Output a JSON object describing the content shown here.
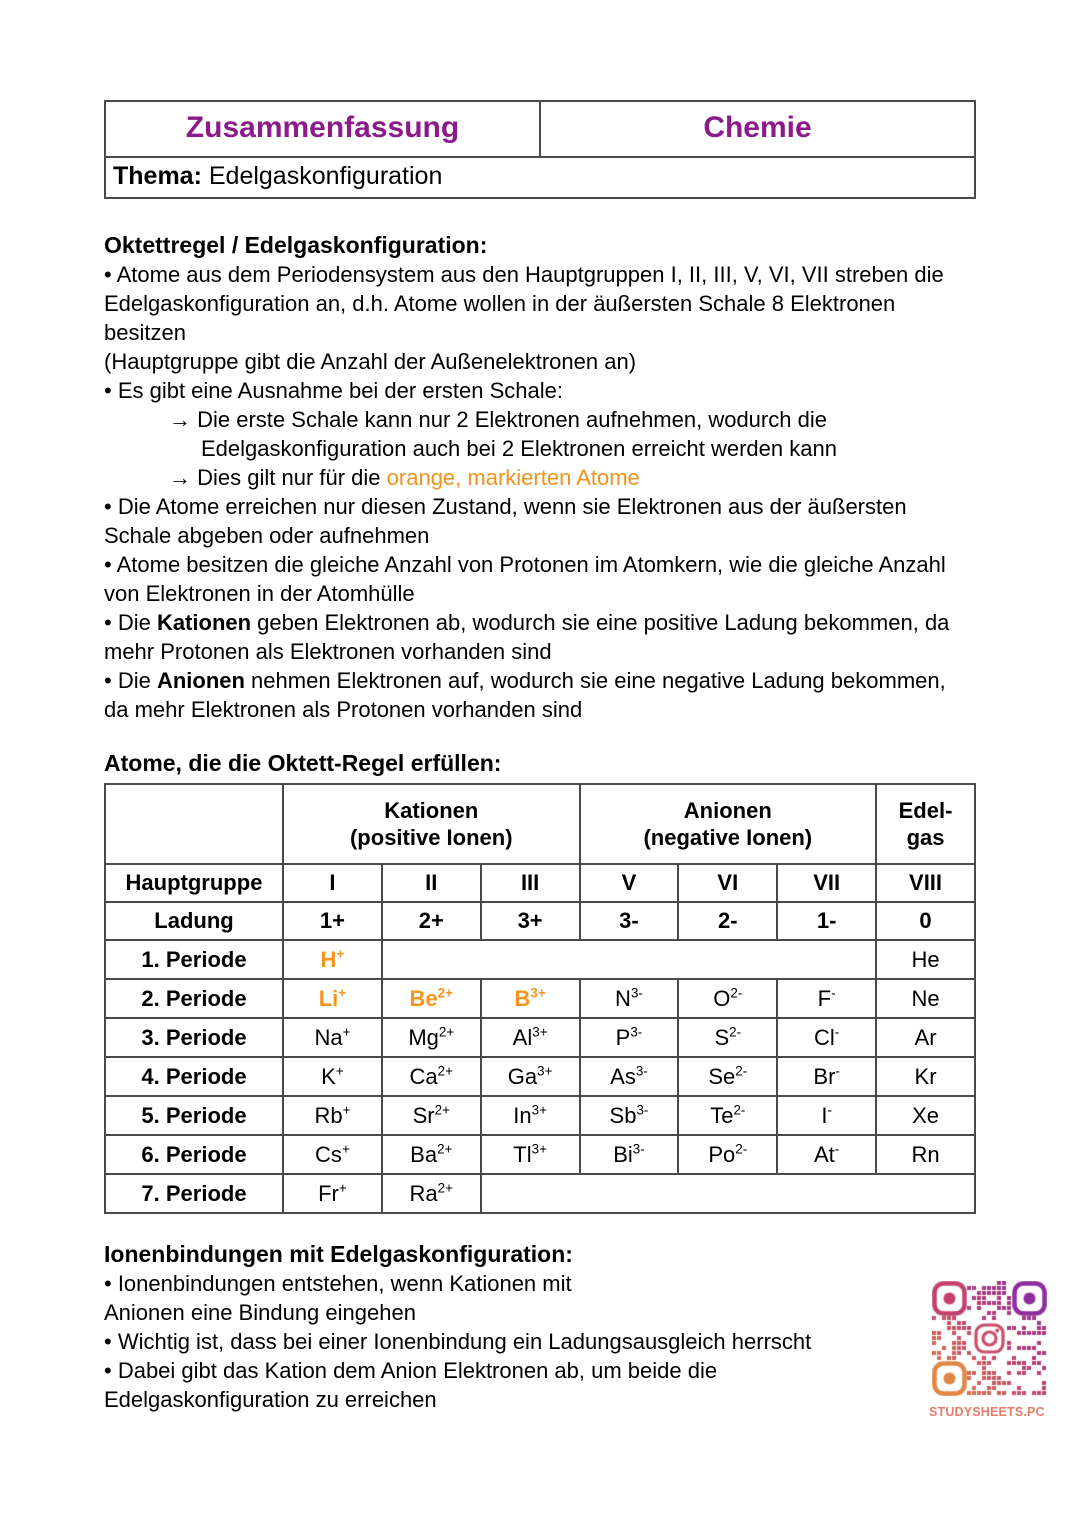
{
  "colors": {
    "purple": "#8B1A8B",
    "orange": "#F0921E",
    "ion_orange": "#F7941E",
    "border": "#4a4a4a",
    "qr_orange": "#E08748",
    "qr_crimson": "#C2416F",
    "qr_purple": "#8E2D9B",
    "qr_icon": "#C94F68",
    "qr_label_color": "#E87B6B"
  },
  "header": {
    "left": "Zusammenfassung",
    "right": "Chemie",
    "thema_label": "Thema:",
    "thema_value": "Edelgaskonfiguration"
  },
  "intro": {
    "heading": "Oktettregel / Edelgaskonfiguration:",
    "paragraphs": [
      {
        "seg": [
          {
            "t": "• Atome aus dem Periodensystem aus den Hauptgruppen I, II, III, V, VI, VII streben die Edelgaskonfiguration an, d.h. Atome wollen in der äußersten Schale 8 Elektronen besitzen"
          }
        ]
      },
      {
        "seg": [
          {
            "t": "(Hauptgruppe gibt die Anzahl der Außenelektronen an)"
          }
        ]
      },
      {
        "seg": [
          {
            "t": "• Es gibt eine Ausnahme bei der ersten Schale:"
          }
        ]
      },
      {
        "indent": true,
        "seg": [
          {
            "t": "→ ",
            "b": true
          },
          {
            "t": "Die erste Schale kann nur 2 Elektronen aufnehmen, wodurch die Edelgaskonfiguration auch bei 2 Elektronen erreicht werden kann"
          }
        ]
      },
      {
        "indent": true,
        "seg": [
          {
            "t": "→ ",
            "b": true
          },
          {
            "t": "Dies gilt nur für die "
          },
          {
            "t": "orange, markierten Atome",
            "c": "orange"
          }
        ]
      },
      {
        "seg": [
          {
            "t": "• Die Atome erreichen nur diesen Zustand, wenn sie Elektronen aus der äußersten Schale abgeben oder aufnehmen"
          }
        ]
      },
      {
        "seg": [
          {
            "t": "• Atome besitzen die gleiche Anzahl von Protonen im Atomkern, wie die gleiche Anzahl von Elektronen in der Atomhülle"
          }
        ]
      },
      {
        "seg": [
          {
            "t": "• Die "
          },
          {
            "t": "Kationen",
            "b": true
          },
          {
            "t": " geben Elektronen ab, wodurch sie eine positive Ladung bekommen, da mehr Protonen als Elektronen vorhanden sind"
          }
        ]
      },
      {
        "seg": [
          {
            "t": "• Die "
          },
          {
            "t": "Anionen",
            "b": true
          },
          {
            "t": " nehmen Elektronen auf, wodurch sie eine negative Ladung bekommen, da mehr Elektronen als Protonen vorhanden sind"
          }
        ]
      }
    ]
  },
  "table": {
    "title": "Atome, die die Oktett-Regel erfüllen:",
    "group_headers": [
      {
        "label": "",
        "span": 1
      },
      {
        "label": "Kationen",
        "sub": "(positive Ionen)",
        "span": 3
      },
      {
        "label": "Anionen",
        "sub": "(negative Ionen)",
        "span": 3
      },
      {
        "label": "Edel-",
        "sub": "gas",
        "span": 1
      }
    ],
    "simple_rows": [
      {
        "label": "Hauptgruppe",
        "cells": [
          "I",
          "II",
          "III",
          "V",
          "VI",
          "VII",
          "VIII"
        ]
      },
      {
        "label": "Ladung",
        "cells": [
          "1+",
          "2+",
          "3+",
          "3-",
          "2-",
          "1-",
          "0"
        ]
      }
    ],
    "period_rows": [
      {
        "label": "1. Periode",
        "cells": [
          {
            "sym": "H",
            "charge": "+",
            "orange": true
          },
          {
            "empty": true,
            "span": 5
          },
          {
            "sym": "He"
          }
        ]
      },
      {
        "label": "2. Periode",
        "cells": [
          {
            "sym": "Li",
            "charge": "+",
            "orange": true
          },
          {
            "sym": "Be",
            "charge": "2+",
            "orange": true
          },
          {
            "sym": "B",
            "charge": "3+",
            "orange": true
          },
          {
            "sym": "N",
            "charge": "3-"
          },
          {
            "sym": "O",
            "charge": "2-"
          },
          {
            "sym": "F",
            "charge": "-"
          },
          {
            "sym": "Ne"
          }
        ]
      },
      {
        "label": "3. Periode",
        "cells": [
          {
            "sym": "Na",
            "charge": "+"
          },
          {
            "sym": "Mg",
            "charge": "2+"
          },
          {
            "sym": "Al",
            "charge": "3+"
          },
          {
            "sym": "P",
            "charge": "3-"
          },
          {
            "sym": "S",
            "charge": "2-"
          },
          {
            "sym": "Cl",
            "charge": "-"
          },
          {
            "sym": "Ar"
          }
        ]
      },
      {
        "label": "4. Periode",
        "cells": [
          {
            "sym": "K",
            "charge": "+"
          },
          {
            "sym": "Ca",
            "charge": "2+"
          },
          {
            "sym": "Ga",
            "charge": "3+"
          },
          {
            "sym": "As",
            "charge": "3-"
          },
          {
            "sym": "Se",
            "charge": "2-"
          },
          {
            "sym": "Br",
            "charge": "-"
          },
          {
            "sym": "Kr"
          }
        ]
      },
      {
        "label": "5. Periode",
        "cells": [
          {
            "sym": "Rb",
            "charge": "+"
          },
          {
            "sym": "Sr",
            "charge": "2+"
          },
          {
            "sym": "In",
            "charge": "3+"
          },
          {
            "sym": "Sb",
            "charge": "3-"
          },
          {
            "sym": "Te",
            "charge": "2-"
          },
          {
            "sym": "I",
            "charge": "-"
          },
          {
            "sym": "Xe"
          }
        ]
      },
      {
        "label": "6. Periode",
        "cells": [
          {
            "sym": "Cs",
            "charge": "+"
          },
          {
            "sym": "Ba",
            "charge": "2+"
          },
          {
            "sym": "Tl",
            "charge": "3+"
          },
          {
            "sym": "Bi",
            "charge": "3-"
          },
          {
            "sym": "Po",
            "charge": "2-"
          },
          {
            "sym": "At",
            "charge": "-"
          },
          {
            "sym": "Rn"
          }
        ]
      },
      {
        "label": "7. Periode",
        "cells": [
          {
            "sym": "Fr",
            "charge": "+"
          },
          {
            "sym": "Ra",
            "charge": "2+"
          },
          {
            "empty": true,
            "span": 5
          }
        ]
      }
    ]
  },
  "ionen": {
    "heading": "Ionenbindungen mit Edelgaskonfiguration:",
    "paragraphs": [
      {
        "seg": [
          {
            "t": "• Ionenbindungen entstehen, wenn Kationen mit"
          },
          {
            "br": true
          },
          {
            "t": "Anionen eine Bindung eingehen"
          }
        ]
      },
      {
        "seg": [
          {
            "t": "• Wichtig ist, dass bei einer Ionenbindung ein Ladungsausgleich herrscht"
          }
        ]
      },
      {
        "seg": [
          {
            "t": "• Dabei gibt das Kation dem Anion Elektronen ab, um beide die"
          },
          {
            "br": true
          },
          {
            "t": "Edelgaskonfiguration zu erreichen"
          }
        ]
      }
    ]
  },
  "qr": {
    "icon": "instagram-qr-code",
    "label": "STUDYSHEETS.PC"
  }
}
